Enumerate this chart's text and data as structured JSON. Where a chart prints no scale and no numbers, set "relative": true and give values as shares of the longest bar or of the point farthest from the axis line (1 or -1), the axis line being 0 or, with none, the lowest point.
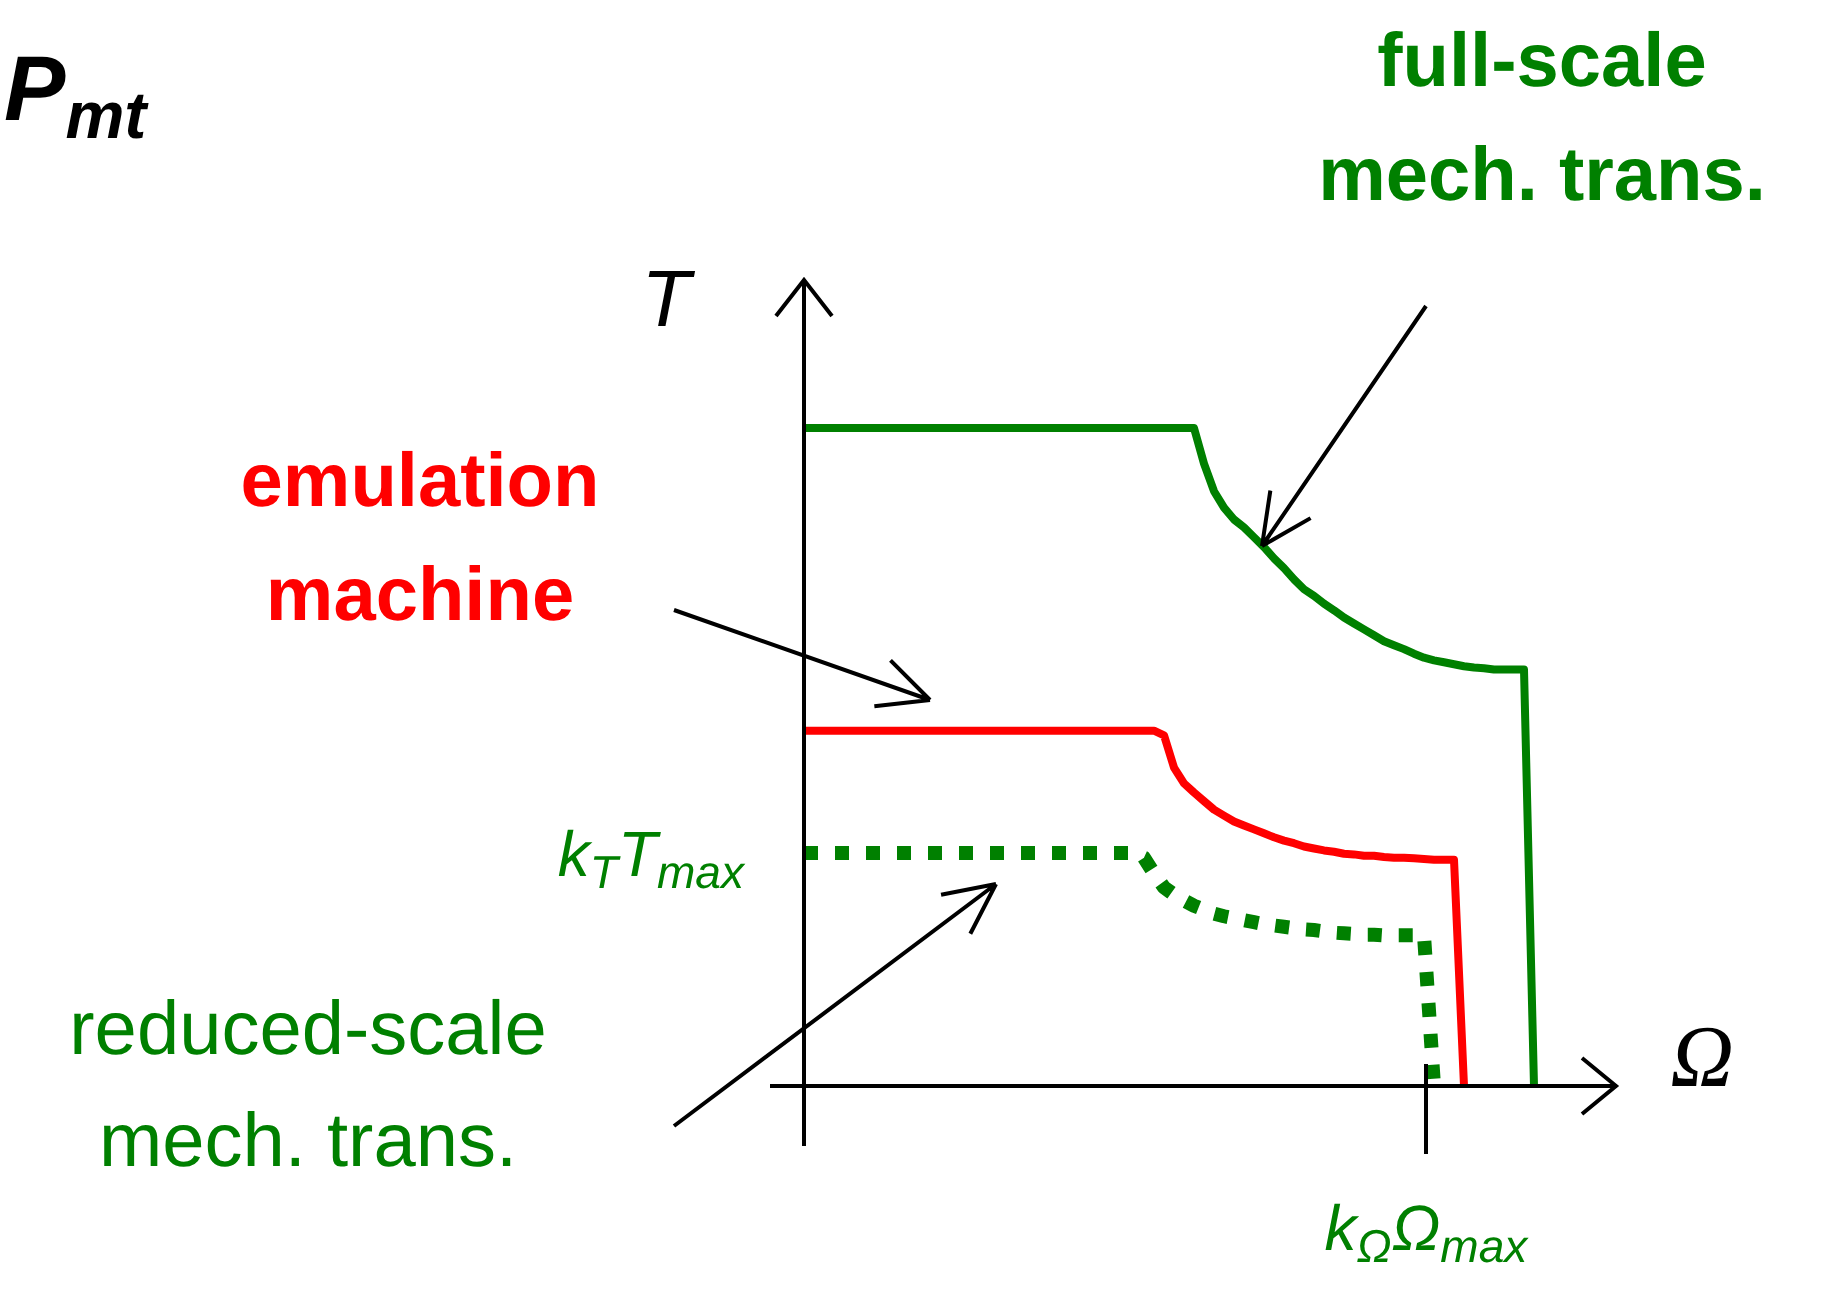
{
  "chart_data": {
    "type": "line",
    "relative": true,
    "xlabel": "Ω",
    "ylabel": "T",
    "marker": "none",
    "line_style": "solid",
    "categories": [
      null,
      null,
      null,
      null,
      null,
      null,
      null,
      null,
      null,
      null,
      null,
      null,
      null,
      null,
      null,
      null,
      null,
      null,
      null,
      null,
      null,
      null,
      null,
      null,
      null,
      null,
      null,
      null,
      null,
      null,
      null,
      null,
      null,
      null,
      null,
      null,
      null,
      null,
      null,
      null,
      null,
      null,
      null,
      null,
      null,
      null,
      null,
      null,
      null,
      null,
      null,
      null,
      null,
      null,
      null,
      null,
      null,
      null,
      null,
      null,
      null,
      null,
      null,
      null,
      null,
      null,
      null,
      null,
      null,
      null,
      null,
      null,
      null,
      null
    ],
    "series": [
      {
        "color": "#008000",
        "values": [
          1,
          1,
          1,
          1,
          1,
          1,
          1,
          1,
          1,
          1,
          1,
          1,
          1,
          1,
          1,
          1,
          1,
          1,
          1,
          1,
          1,
          1,
          1,
          1,
          1,
          1,
          1,
          1,
          1,
          1,
          1,
          1,
          1,
          1,
          1,
          1,
          1,
          1,
          1,
          1,
          0.946,
          0.904,
          0.879,
          0.861,
          0.849,
          0.834,
          0.819,
          0.802,
          0.787,
          0.77,
          0.755,
          0.745,
          0.733,
          0.723,
          0.712,
          0.703,
          0.694,
          0.685,
          0.676,
          0.67,
          0.664,
          0.657,
          0.651,
          0.647,
          0.644,
          0.641,
          0.638,
          0.636,
          0.635,
          0.633,
          0.633,
          0.633,
          0.633,
          0
        ]
      },
      {
        "name": "emulation machine",
        "color": "#ff0000",
        "values": [
          0.54,
          0.54,
          0.54,
          0.54,
          0.54,
          0.54,
          0.54,
          0.54,
          0.54,
          0.54,
          0.54,
          0.54,
          0.54,
          0.54,
          0.54,
          0.54,
          0.54,
          0.54,
          0.54,
          0.54,
          0.54,
          0.54,
          0.54,
          0.54,
          0.54,
          0.54,
          0.54,
          0.54,
          0.54,
          0.54,
          0.54,
          0.54,
          0.54,
          0.54,
          0.54,
          0.54,
          0.533,
          0.484,
          0.46,
          0.446,
          0.433,
          0.42,
          0.411,
          0.402,
          0.396,
          0.39,
          0.384,
          0.378,
          0.373,
          0.369,
          0.364,
          0.361,
          0.358,
          0.356,
          0.353,
          0.352,
          0.35,
          0.35,
          0.348,
          0.347,
          0.347,
          0.346,
          0.345,
          0.344,
          0.344,
          0.344,
          0,
          null,
          null,
          null,
          null,
          null,
          null,
          null
        ]
      },
      {
        "color": "#008000",
        "line_style": "dotted",
        "values": [
          0.354,
          0.354,
          0.354,
          0.354,
          0.354,
          0.354,
          0.354,
          0.354,
          0.354,
          0.354,
          0.354,
          0.354,
          0.354,
          0.354,
          0.354,
          0.354,
          0.354,
          0.354,
          0.354,
          0.354,
          0.354,
          0.354,
          0.354,
          0.354,
          0.354,
          0.354,
          0.354,
          0.354,
          0.354,
          0.354,
          0.354,
          0.354,
          0.354,
          0.354,
          0.347,
          0.323,
          0.302,
          0.291,
          0.282,
          0.274,
          0.268,
          0.262,
          0.258,
          0.255,
          0.252,
          0.249,
          0.246,
          0.244,
          0.242,
          0.24,
          0.238,
          0.237,
          0.235,
          0.233,
          0.232,
          0.231,
          0.23,
          0.23,
          0.229,
          0.229,
          0.229,
          0.229,
          0.229,
          0,
          null,
          null,
          null,
          null,
          null,
          null,
          null,
          null,
          null,
          null
        ]
      }
    ],
    "annotations": [
      "P$_{mt}$",
      "full-scale mech. trans.",
      "reduced-scale mech. trans.",
      "k$_{T}$T$_{max}$",
      "k$_{Ω}$Ω$_{max}$"
    ]
  }
}
